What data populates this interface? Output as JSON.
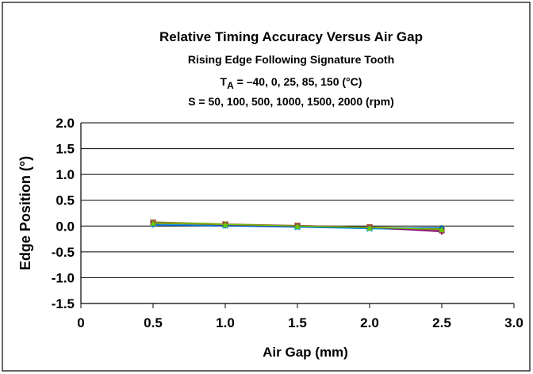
{
  "chart_data": {
    "type": "line",
    "title": "Relative Timing Accuracy Versus Air Gap",
    "subtitle": "Rising Edge Following Signature Tooth",
    "condition_ta_prefix": "T",
    "condition_ta_subscript": "A",
    "condition_ta_rest": " = –40, 0, 25, 85, 150 (°C)",
    "condition_speed": "S = 50, 100, 500, 1000, 1500, 2000 (rpm)",
    "xlabel": "Air Gap (mm)",
    "ylabel": "Edge Position (°)",
    "xlim": [
      0,
      3.0
    ],
    "ylim": [
      -1.5,
      2.0
    ],
    "x_ticks": [
      "0",
      "0.5",
      "1.0",
      "1.5",
      "2.0",
      "2.5",
      "3.0"
    ],
    "x_tick_values": [
      0,
      0.5,
      1.0,
      1.5,
      2.0,
      2.5,
      3.0
    ],
    "y_ticks": [
      "2.0",
      "1.5",
      "1.0",
      "0.5",
      "0.0",
      "-0.5",
      "-1.0",
      "-1.5"
    ],
    "y_tick_values": [
      2.0,
      1.5,
      1.0,
      0.5,
      0.0,
      -0.5,
      -1.0,
      -1.5
    ],
    "grid": "horizontal",
    "x": [
      0.5,
      1.0,
      1.5,
      2.0,
      2.5
    ],
    "series": [
      {
        "values": [
          0.07,
          0.03,
          0.0,
          -0.03,
          -0.07
        ],
        "color": "#000080",
        "marker": "diamond"
      },
      {
        "values": [
          0.06,
          0.02,
          0.0,
          -0.03,
          -0.09
        ],
        "color": "#ff00ff",
        "marker": "square"
      },
      {
        "values": [
          0.05,
          0.02,
          -0.01,
          -0.04,
          -0.06
        ],
        "color": "#008080",
        "marker": "triangle"
      },
      {
        "values": [
          0.04,
          0.01,
          -0.02,
          -0.05,
          -0.08
        ],
        "color": "#00aaff",
        "marker": "x"
      },
      {
        "values": [
          0.08,
          0.04,
          0.01,
          -0.02,
          -0.05
        ],
        "color": "#808000",
        "marker": "star"
      },
      {
        "values": [
          0.07,
          0.03,
          0.0,
          -0.02,
          -0.1
        ],
        "color": "#c06060",
        "marker": "circle"
      },
      {
        "values": [
          0.06,
          0.02,
          -0.01,
          -0.03,
          -0.11
        ],
        "color": "#800080",
        "marker": "plus"
      },
      {
        "values": [
          0.05,
          0.03,
          0.01,
          -0.02,
          -0.08
        ],
        "color": "#a04040",
        "marker": "square"
      },
      {
        "values": [
          0.02,
          0.0,
          -0.02,
          -0.04,
          -0.03
        ],
        "color": "#0066cc",
        "marker": "diamond"
      },
      {
        "values": [
          0.06,
          0.03,
          0.0,
          -0.03,
          -0.06
        ],
        "color": "#66cc00",
        "marker": "triangle"
      }
    ]
  }
}
